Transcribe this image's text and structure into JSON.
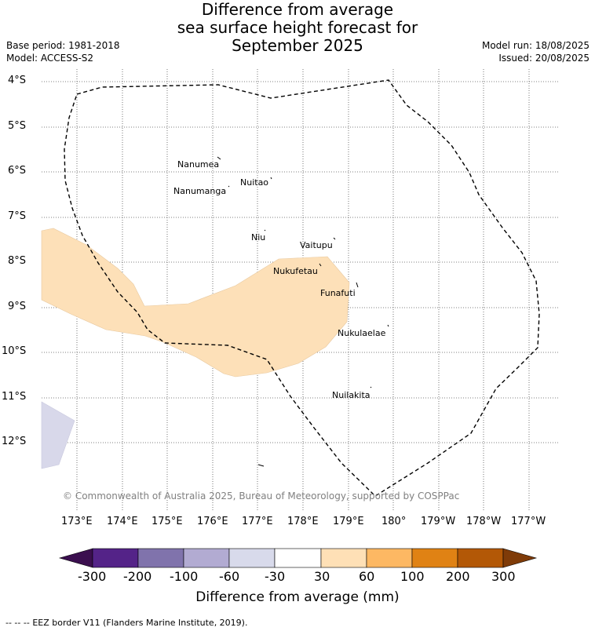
{
  "header": {
    "title_lines": [
      "Difference from average",
      "sea surface height forecast for",
      "September 2025"
    ],
    "base_period": "Base period: 1981-2018",
    "model": "Model: ACCESS-S2",
    "model_run": "Model run: 18/08/2025",
    "issued": "Issued: 20/08/2025"
  },
  "map": {
    "lat_labels": [
      "4°S",
      "5°S",
      "6°S",
      "7°S",
      "8°S",
      "9°S",
      "10°S",
      "11°S",
      "12°S"
    ],
    "lon_labels": [
      "173°E",
      "174°E",
      "175°E",
      "176°E",
      "177°E",
      "178°E",
      "179°E",
      "180°",
      "179°W",
      "178°W",
      "177°W"
    ],
    "islands": [
      "Nanumea",
      "Nuitao",
      "Nanumanga",
      "Niu",
      "Vaitupu",
      "Nukufetau",
      "Funafuti",
      "Nukulaelae",
      "Nuilakita"
    ],
    "copyright": "© Commonwealth of Australia 2025, Bureau of Meteorology, supported by COSPPac",
    "colors": {
      "positive_30_60": "#fde0b8",
      "negative_60_30": "#d8d8ea",
      "eez_border": "#000000",
      "gridline": "#555555"
    }
  },
  "colorbar": {
    "tick_labels": [
      "-300",
      "-200",
      "-100",
      "-60",
      "-30",
      "30",
      "60",
      "100",
      "200",
      "300"
    ],
    "title": "Difference from average (mm)",
    "colors": [
      "#3b0f4f",
      "#542388",
      "#8073ac",
      "#b2abd2",
      "#d8daeb",
      "#ffffff",
      "#fee0b6",
      "#fdb863",
      "#e08214",
      "#b35806",
      "#7f3b08"
    ]
  },
  "footer": {
    "legend_symbol": "-- -- --",
    "legend_text": "EEZ border V11 (Flanders Marine Institute, 2019)."
  }
}
